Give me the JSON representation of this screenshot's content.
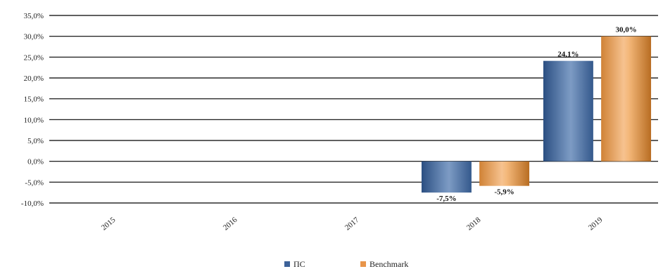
{
  "chart_data": {
    "type": "bar",
    "categories": [
      "2015",
      "2016",
      "2017",
      "2018",
      "2019"
    ],
    "series": [
      {
        "name": "ПС",
        "color": "#4a6f9e",
        "values": [
          null,
          null,
          null,
          -7.5,
          24.1
        ],
        "labels": [
          "",
          "",
          "",
          "-7,5%",
          "24,1%"
        ]
      },
      {
        "name": "Benchmark",
        "color": "#e39a4e",
        "values": [
          null,
          null,
          null,
          -5.9,
          30.0
        ],
        "labels": [
          "",
          "",
          "",
          "-5,9%",
          "30,0%"
        ]
      }
    ],
    "yticks": [
      35,
      30,
      25,
      20,
      15,
      10,
      5,
      0,
      -5,
      -10
    ],
    "ytick_labels": [
      "35,0%",
      "30,0%",
      "25,0%",
      "20,0%",
      "15,0%",
      "10,0%",
      "5,0%",
      "0,0%",
      "-5,0%",
      "-10,0%"
    ],
    "ylim": [
      -10,
      35
    ],
    "grid": true,
    "legend_position": "bottom",
    "title": "",
    "xlabel": "",
    "ylabel": ""
  }
}
